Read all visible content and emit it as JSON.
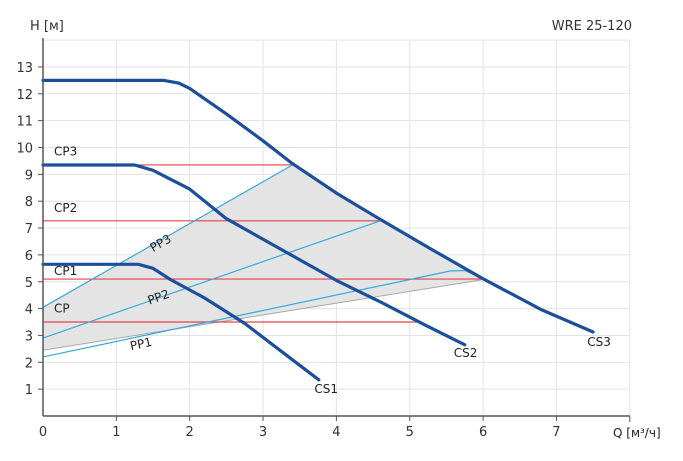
{
  "chart_data": {
    "type": "line",
    "title": "WRE 25-120",
    "xlabel": "Q [м³/ч]",
    "ylabel": "H [м]",
    "xlim": [
      0,
      8
    ],
    "ylim": [
      0,
      14
    ],
    "x_ticks": [
      "0",
      "1",
      "2",
      "3",
      "4",
      "5",
      "6",
      "7"
    ],
    "y_ticks": [
      "1",
      "2",
      "3",
      "4",
      "5",
      "6",
      "7",
      "8",
      "9",
      "10",
      "11",
      "12",
      "13"
    ],
    "grid": true,
    "colors": {
      "pump_curve": "#1b4f9a",
      "proportional": "#35a9dc",
      "constant": "#e5404c",
      "area_fill": "#e4e4e4",
      "area_edge": "#a8a8a8"
    },
    "operating_area": [
      [
        0,
        2.45
      ],
      [
        0,
        4.05
      ],
      [
        3.4,
        9.35
      ],
      [
        4.0,
        8.3
      ],
      [
        4.63,
        7.27
      ],
      [
        5.3,
        6.2
      ],
      [
        6.0,
        5.08
      ],
      [
        0,
        2.45
      ]
    ],
    "pump_curves": [
      {
        "name": "CS3",
        "label_at": [
          7.42,
          2.6
        ],
        "points": [
          [
            0,
            12.5
          ],
          [
            1.65,
            12.5
          ],
          [
            1.85,
            12.4
          ],
          [
            2,
            12.2
          ],
          [
            2.5,
            11.25
          ],
          [
            3,
            10.25
          ],
          [
            3.4,
            9.4
          ],
          [
            4,
            8.3
          ],
          [
            4.63,
            7.27
          ],
          [
            5.3,
            6.2
          ],
          [
            6.02,
            5.08
          ],
          [
            6.8,
            3.95
          ],
          [
            7.5,
            3.13
          ]
        ]
      },
      {
        "name": "CS2",
        "label_at": [
          5.6,
          2.2
        ],
        "points": [
          [
            0,
            9.35
          ],
          [
            1.25,
            9.35
          ],
          [
            1.5,
            9.15
          ],
          [
            2,
            8.45
          ],
          [
            2.5,
            7.35
          ],
          [
            3.35,
            6.05
          ],
          [
            4,
            5.05
          ],
          [
            4.6,
            4.25
          ],
          [
            5.2,
            3.4
          ],
          [
            5.75,
            2.65
          ]
        ]
      },
      {
        "name": "CS1",
        "label_at": [
          3.7,
          0.85
        ],
        "points": [
          [
            0,
            5.65
          ],
          [
            1.3,
            5.65
          ],
          [
            1.5,
            5.5
          ],
          [
            1.74,
            5.08
          ],
          [
            2.2,
            4.4
          ],
          [
            2.75,
            3.45
          ],
          [
            3.3,
            2.3
          ],
          [
            3.76,
            1.35
          ]
        ]
      }
    ],
    "constant_pressure": [
      {
        "name": "CP3",
        "y": 9.35,
        "x_end": 3.4,
        "label_at": [
          0.15,
          9.7
        ]
      },
      {
        "name": "CP2",
        "y": 7.27,
        "x_end": 4.6,
        "label_at": [
          0.15,
          7.6
        ]
      },
      {
        "name": "CP1",
        "y": 5.1,
        "x_end": 6.0,
        "label_at": [
          0.15,
          5.25
        ]
      },
      {
        "name": "CP",
        "y": 3.5,
        "x_end": 5.13,
        "label_at": [
          0.15,
          3.85
        ]
      }
    ],
    "proportional_pressure": [
      {
        "name": "PP3",
        "points": [
          [
            0,
            4.05
          ],
          [
            3.4,
            9.35
          ]
        ],
        "label_at": [
          1.5,
          6.1
        ]
      },
      {
        "name": "PP2",
        "points": [
          [
            0,
            2.9
          ],
          [
            4.6,
            7.27
          ]
        ],
        "label_at": [
          1.45,
          4.15
        ]
      },
      {
        "name": "PP1",
        "points": [
          [
            0,
            2.2
          ],
          [
            5.55,
            5.4
          ],
          [
            5.75,
            5.42
          ],
          [
            6.02,
            5.08
          ]
        ],
        "label_at": [
          1.2,
          2.45
        ]
      }
    ]
  }
}
